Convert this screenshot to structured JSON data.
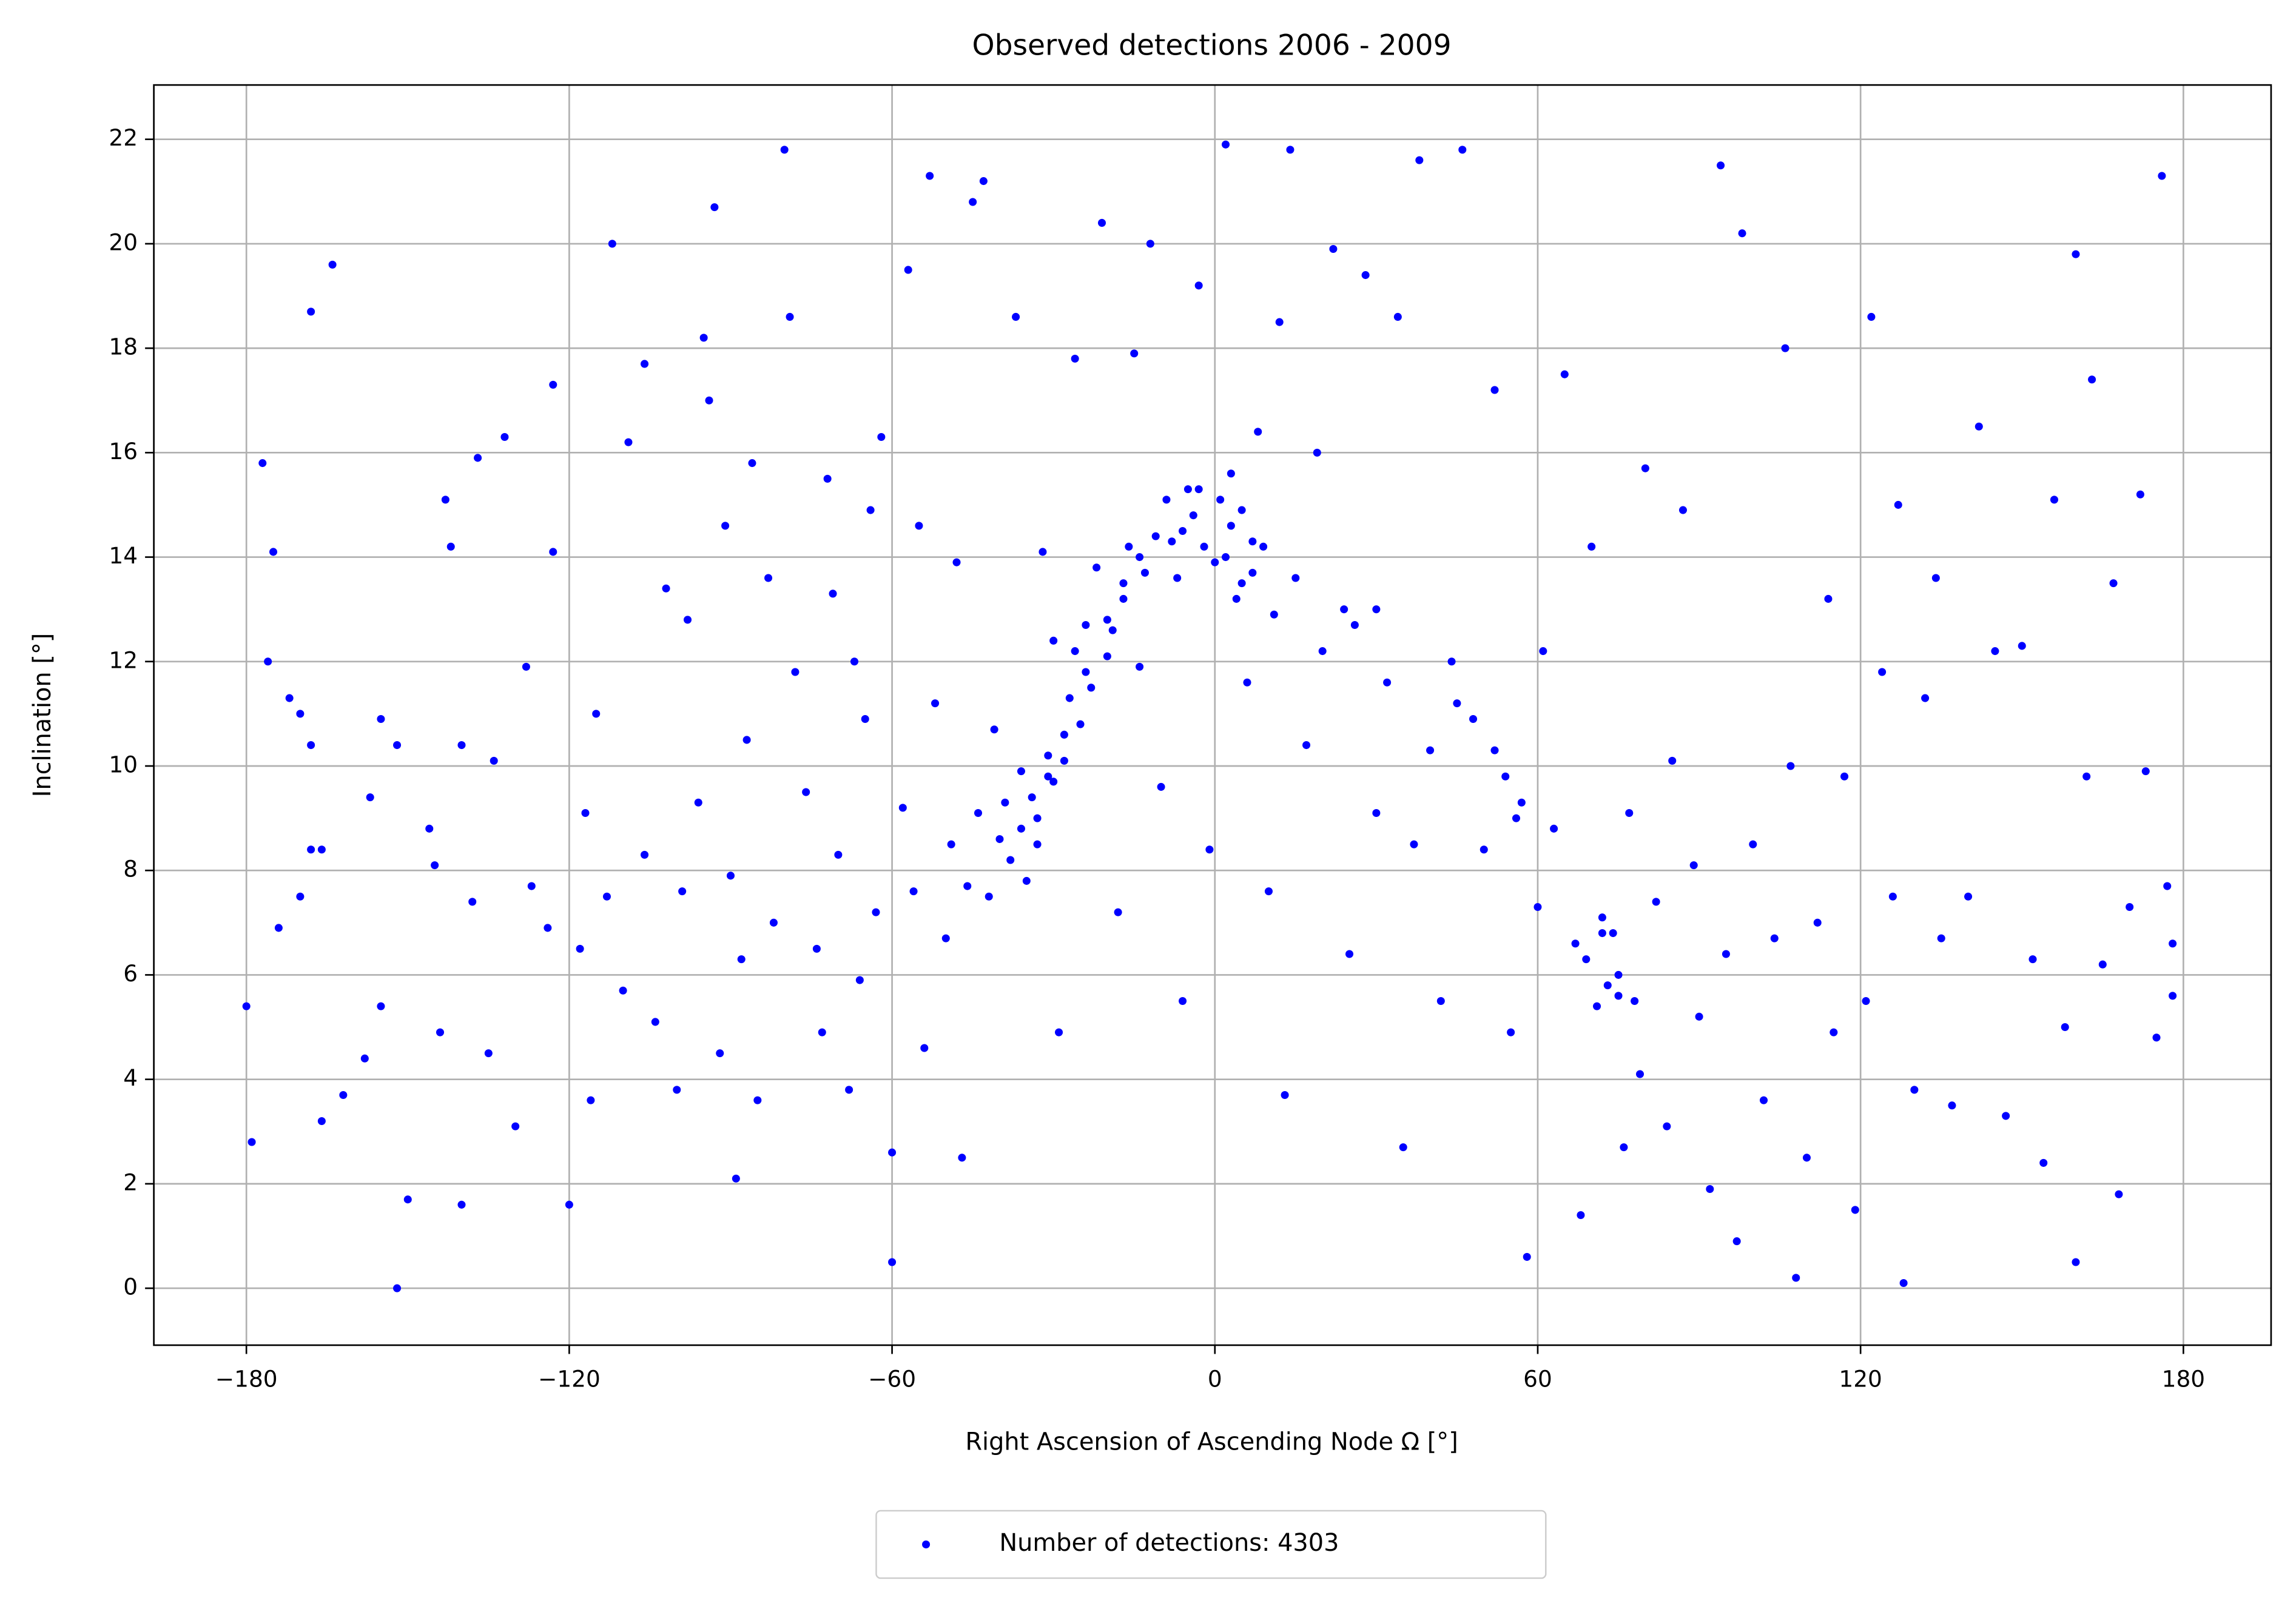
{
  "chart_data": {
    "type": "scatter",
    "title": "Observed detections 2006 - 2009",
    "xlabel": "Right Ascension of Ascending Node Ω [°]",
    "ylabel": "Inclination [°]",
    "xlim": [
      -197.2,
      196.3
    ],
    "ylim": [
      -1.09,
      23.04
    ],
    "xticks": [
      {
        "value": -180,
        "label": "−180"
      },
      {
        "value": -120,
        "label": "−120"
      },
      {
        "value": -60,
        "label": "−60"
      },
      0,
      60,
      120,
      180
    ],
    "yticks": [
      0,
      2,
      4,
      6,
      8,
      10,
      12,
      14,
      16,
      18,
      20,
      22
    ],
    "grid": true,
    "legend": "lower center",
    "x": [
      -180,
      -179,
      -177,
      -175,
      -176,
      -172,
      -170,
      -174,
      -170,
      -168,
      -168,
      -166,
      -168,
      -164,
      -166,
      -162,
      -158,
      -157,
      -155,
      -155,
      -152,
      -150,
      -152,
      -146,
      -145,
      -144,
      -143,
      -142,
      -140,
      -140,
      -138,
      -137,
      -135,
      -134,
      -132,
      -130,
      -128,
      -127,
      -124,
      -123,
      -123,
      -120,
      -118,
      -117,
      -116,
      -115,
      -113,
      -112,
      -110,
      -109,
      -106,
      -106,
      -104,
      -102,
      -100,
      -99,
      -98,
      -96,
      -95,
      -94,
      -93,
      -92,
      -91,
      -90,
      -89,
      -88,
      -87,
      -86,
      -85,
      -83,
      -82,
      -80,
      -79,
      -78,
      -76,
      -74,
      -73,
      -72,
      -71,
      -70,
      -68,
      -67,
      -66,
      -65,
      -64,
      -63,
      -62,
      -60,
      -60,
      -58,
      -57,
      -56,
      -55,
      -54,
      -53,
      -52,
      -50,
      -49,
      -48,
      -47,
      -46,
      -45,
      -44,
      -43,
      -42,
      -41,
      -40,
      -39,
      -38,
      -37,
      -36,
      -36,
      -35,
      -34,
      -33,
      -32,
      -31,
      -30,
      -30,
      -29,
      -28,
      -27,
      -26,
      -26,
      -25,
      -24,
      -23,
      -22,
      -21,
      -20,
      -19,
      -18,
      -17,
      -16,
      -15,
      -14,
      -13,
      -12,
      -11,
      -10,
      -9,
      -8,
      -7,
      -6,
      -5,
      -4,
      -3,
      -2,
      -1,
      0,
      1,
      2,
      3,
      4,
      5,
      6,
      7,
      8,
      9,
      10,
      11,
      12,
      13,
      14,
      15,
      17,
      19,
      20,
      22,
      24,
      25,
      26,
      28,
      30,
      32,
      34,
      35,
      37,
      38,
      40,
      42,
      44,
      46,
      48,
      50,
      52,
      54,
      55,
      57,
      58,
      60,
      61,
      63,
      65,
      67,
      68,
      69,
      70,
      71,
      72,
      73,
      74,
      75,
      76,
      77,
      79,
      80,
      82,
      84,
      85,
      87,
      89,
      90,
      92,
      94,
      95,
      97,
      98,
      100,
      102,
      104,
      106,
      107,
      108,
      110,
      112,
      114,
      115,
      117,
      119,
      121,
      122,
      124,
      126,
      127,
      128,
      130,
      132,
      134,
      135,
      137,
      140,
      142,
      145,
      147,
      150,
      152,
      154,
      156,
      158,
      160,
      160,
      162,
      163,
      165,
      167,
      168,
      170,
      172,
      173,
      175,
      176,
      177,
      178,
      178,
      -33,
      -31,
      -28,
      -24,
      -20,
      -17,
      -14,
      -6,
      -3,
      2,
      3,
      5,
      7,
      30,
      45,
      52,
      56,
      75,
      78,
      72
    ],
    "series": [
      {
        "name": "Number of detections: 4303",
        "color": "#0000ff",
        "values": [
          5.4,
          2.8,
          15.8,
          14.1,
          12,
          11.3,
          11,
          6.9,
          7.5,
          10.4,
          8.4,
          8.4,
          18.7,
          19.6,
          3.2,
          3.7,
          4.4,
          9.4,
          10.9,
          5.4,
          10.4,
          1.7,
          0,
          8.8,
          8.1,
          4.9,
          15.1,
          14.2,
          10.4,
          1.6,
          7.4,
          15.9,
          4.5,
          10.1,
          16.3,
          3.1,
          11.9,
          7.7,
          6.9,
          17.3,
          14.1,
          1.6,
          6.5,
          9.1,
          3.6,
          11,
          7.5,
          20,
          5.7,
          16.2,
          8.3,
          17.7,
          5.1,
          13.4,
          3.8,
          7.6,
          12.8,
          9.3,
          18.2,
          17,
          20.7,
          4.5,
          14.6,
          7.9,
          2.1,
          6.3,
          10.5,
          15.8,
          3.6,
          13.6,
          7,
          21.8,
          18.6,
          11.8,
          9.5,
          6.5,
          4.9,
          15.5,
          13.3,
          8.3,
          3.8,
          12,
          5.9,
          10.9,
          14.9,
          7.2,
          16.3,
          0.5,
          2.6,
          9.2,
          19.5,
          7.6,
          14.6,
          4.6,
          21.3,
          11.2,
          6.7,
          8.5,
          13.9,
          2.5,
          7.7,
          20.8,
          9.1,
          21.2,
          7.5,
          10.7,
          8.6,
          9.3,
          8.2,
          18.6,
          9.9,
          8.8,
          7.8,
          9.4,
          8.5,
          14.1,
          10.2,
          9.7,
          12.4,
          4.9,
          10.1,
          11.3,
          17.8,
          12.2,
          10.8,
          12.7,
          11.5,
          13.8,
          20.4,
          12.1,
          12.6,
          7.2,
          13.5,
          14.2,
          17.9,
          11.9,
          13.7,
          20,
          14.4,
          9.6,
          15.1,
          14.3,
          13.6,
          5.5,
          15.3,
          14.8,
          19.2,
          14.2,
          8.4,
          13.9,
          15.1,
          21.9,
          14.6,
          13.2,
          14.9,
          11.6,
          13.7,
          16.4,
          14.2,
          7.6,
          12.9,
          18.5,
          3.7,
          21.8,
          13.6,
          10.4,
          16,
          12.2,
          19.9,
          13,
          6.4,
          12.7,
          19.4,
          9.1,
          11.6,
          18.6,
          2.7,
          8.5,
          21.6,
          10.3,
          5.5,
          12,
          21.8,
          10.9,
          8.4,
          17.2,
          9.8,
          4.9,
          9.3,
          0.6,
          7.3,
          12.2,
          8.8,
          17.5,
          6.6,
          1.4,
          6.3,
          14.2,
          5.4,
          7.1,
          5.8,
          6.8,
          5.6,
          2.7,
          9.1,
          4.1,
          15.7,
          7.4,
          3.1,
          10.1,
          14.9,
          8.1,
          5.2,
          1.9,
          21.5,
          6.4,
          0.9,
          20.2,
          8.5,
          3.6,
          6.7,
          18,
          10,
          0.2,
          2.5,
          7,
          13.2,
          4.9,
          9.8,
          1.5,
          5.5,
          18.6,
          11.8,
          7.5,
          15,
          0.1,
          3.8,
          11.3,
          13.6,
          6.7,
          3.5,
          7.5,
          16.5,
          12.2,
          3.3,
          12.3,
          6.3,
          2.4,
          15.1,
          5,
          19.8,
          0.5,
          9.8,
          17.4,
          6.2,
          13.5,
          1.8,
          7.3,
          15.2,
          9.9,
          4.8,
          21.3,
          7.7,
          6.6,
          5.6,
          9.0,
          9.8,
          10.6,
          11.8,
          12.8,
          13.2,
          14.0,
          14.5,
          15.3,
          14.0,
          15.6,
          13.5,
          14.3,
          13.0,
          11.2,
          10.3,
          9.0,
          6.0,
          5.5,
          6.8
        ]
      }
    ]
  }
}
